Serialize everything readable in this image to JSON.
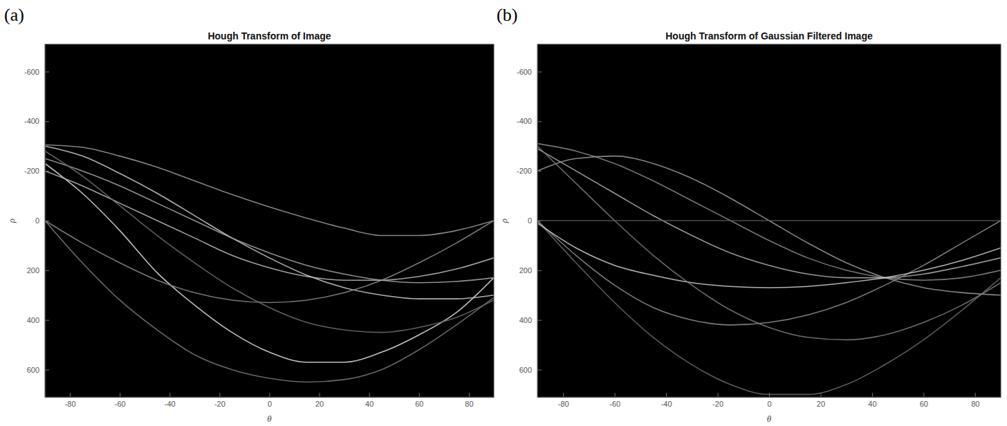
{
  "chart_data": [
    {
      "type": "line",
      "panel_label": "(a)",
      "title": "Hough Transform of Image",
      "x_label": "θ",
      "y_label": "ρ",
      "x": [
        -90,
        -75,
        -60,
        -45,
        -30,
        -15,
        0,
        15,
        30,
        45,
        60,
        75,
        90
      ],
      "xlim": [
        -90,
        90
      ],
      "xticks": [
        -80,
        -60,
        -40,
        -20,
        0,
        20,
        40,
        60,
        80
      ],
      "ylim": [
        -710,
        710
      ],
      "yticks": [
        -600,
        -400,
        -200,
        0,
        200,
        400,
        600
      ],
      "grid": false,
      "series": [
        {
          "color": "#9a9a9a",
          "values": [
            -305,
            -295,
            -260,
            -215,
            -160,
            -105,
            -55,
            -10,
            30,
            60,
            60,
            40,
            0
          ]
        },
        {
          "color": "#7a7a7a",
          "values": [
            0,
            170,
            320,
            440,
            540,
            600,
            635,
            650,
            640,
            600,
            520,
            420,
            310
          ]
        },
        {
          "color": "#e0e0e0",
          "values": [
            -230,
            -110,
            40,
            210,
            340,
            450,
            530,
            570,
            570,
            530,
            460,
            370,
            230
          ]
        },
        {
          "color": "#bdbdbd",
          "values": [
            -200,
            -140,
            -70,
            0,
            70,
            140,
            190,
            225,
            240,
            240,
            225,
            195,
            150
          ]
        },
        {
          "color": "#cfcfcf",
          "values": [
            -300,
            -260,
            -190,
            -110,
            -20,
            70,
            150,
            220,
            270,
            300,
            315,
            315,
            300
          ]
        },
        {
          "color": "#8c8c8c",
          "values": [
            0,
            90,
            170,
            240,
            290,
            320,
            330,
            320,
            290,
            240,
            170,
            90,
            0
          ]
        },
        {
          "color": "#a8a8a8",
          "values": [
            -250,
            -200,
            -140,
            -70,
            0,
            70,
            130,
            180,
            215,
            240,
            250,
            245,
            230
          ]
        },
        {
          "color": "#6e6e6e",
          "values": [
            -280,
            -180,
            -60,
            60,
            170,
            270,
            350,
            410,
            440,
            450,
            430,
            390,
            320
          ]
        }
      ]
    },
    {
      "type": "line",
      "panel_label": "(b)",
      "title": "Hough Transform of Gaussian Filtered Image",
      "x_label": "θ",
      "y_label": "ρ",
      "x": [
        -90,
        -75,
        -60,
        -45,
        -30,
        -15,
        0,
        15,
        30,
        45,
        60,
        75,
        90
      ],
      "xlim": [
        -90,
        90
      ],
      "xticks": [
        -80,
        -60,
        -40,
        -20,
        0,
        20,
        40,
        60,
        80
      ],
      "ylim": [
        -710,
        710
      ],
      "yticks": [
        -600,
        -400,
        -200,
        0,
        200,
        400,
        600
      ],
      "grid": false,
      "series": [
        {
          "color": "#8a8a8a",
          "values": [
            -310,
            -280,
            -230,
            -160,
            -80,
            0,
            80,
            150,
            200,
            230,
            240,
            230,
            200
          ]
        },
        {
          "color": "#6a6a6a",
          "values": [
            0,
            170,
            330,
            470,
            580,
            660,
            700,
            700,
            660,
            580,
            480,
            360,
            230
          ]
        },
        {
          "color": "#9c9c9c",
          "values": [
            -200,
            -250,
            -260,
            -230,
            -170,
            -90,
            0,
            90,
            170,
            230,
            270,
            290,
            300
          ]
        },
        {
          "color": "#b0b0b0",
          "values": [
            -290,
            -200,
            -110,
            -20,
            60,
            130,
            180,
            215,
            230,
            230,
            215,
            185,
            150
          ]
        },
        {
          "color": "#8f8f8f",
          "values": [
            0,
            140,
            260,
            350,
            400,
            420,
            410,
            380,
            330,
            260,
            180,
            90,
            0
          ]
        },
        {
          "color": "#d0d0d0",
          "values": [
            10,
            110,
            180,
            220,
            250,
            265,
            270,
            265,
            250,
            230,
            200,
            160,
            110
          ]
        },
        {
          "color": "#7c7c7c",
          "values": [
            -300,
            -150,
            0,
            140,
            260,
            360,
            430,
            470,
            480,
            460,
            410,
            340,
            250
          ]
        },
        {
          "color": "#5a5a5a",
          "values": [
            0,
            0,
            0,
            0,
            0,
            0,
            0,
            0,
            0,
            0,
            0,
            0,
            0
          ]
        }
      ]
    }
  ]
}
